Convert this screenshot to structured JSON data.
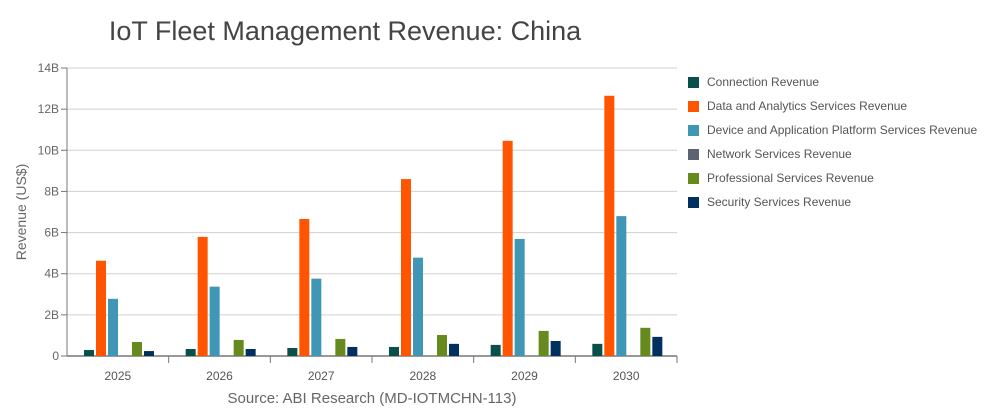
{
  "chart_data": {
    "type": "bar",
    "title": "IoT Fleet Management Revenue: China",
    "source": "Source: ABI Research (MD-IOTMCHN-113)",
    "ylabel": "Revenue (US$)",
    "xlabel": "",
    "ylim": [
      0,
      14
    ],
    "yticks": [
      "0",
      "2B",
      "4B",
      "6B",
      "8B",
      "10B",
      "12B",
      "14B"
    ],
    "grid": true,
    "legend_position": "right",
    "categories": [
      "2025",
      "2026",
      "2027",
      "2028",
      "2029",
      "2030"
    ],
    "series": [
      {
        "name": "Connection Revenue",
        "color": "#0b4f4a",
        "values": [
          0.29,
          0.34,
          0.39,
          0.44,
          0.54,
          0.59
        ]
      },
      {
        "name": "Data and Analytics Services Revenue",
        "color": "#ff5500",
        "values": [
          4.63,
          5.79,
          6.66,
          8.6,
          10.46,
          12.65
        ]
      },
      {
        "name": "Device and Application Platform Services Revenue",
        "color": "#3f97b5",
        "values": [
          2.78,
          3.37,
          3.76,
          4.78,
          5.69,
          6.8
        ]
      },
      {
        "name": "Network Services Revenue",
        "color": "#5b6470",
        "values": [
          0,
          0,
          0,
          0,
          0,
          0
        ]
      },
      {
        "name": "Professional Services Revenue",
        "color": "#678a1e",
        "values": [
          0.68,
          0.78,
          0.83,
          1.02,
          1.22,
          1.37
        ]
      },
      {
        "name": "Security Services Revenue",
        "color": "#003060",
        "values": [
          0.24,
          0.34,
          0.44,
          0.59,
          0.73,
          0.93
        ]
      }
    ]
  }
}
